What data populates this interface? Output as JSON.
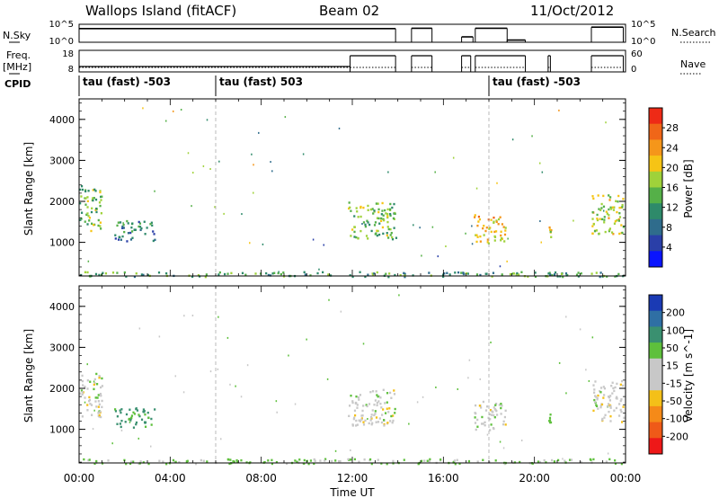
{
  "header": {
    "station": "Wallops Island (fitACF)",
    "beam": "Beam 02",
    "date": "11/Oct/2012"
  },
  "labels": {
    "nsky": "N.Sky",
    "freq_line1": "Freq.",
    "freq_line2": "[MHz]",
    "cpid": "CPID",
    "nsearch": "N.Search",
    "nave": "Nave",
    "nsky_top": "10^5",
    "nsky_bottom": "10^0",
    "nsearch_top": "10^5",
    "nsearch_bottom": "10^0",
    "freq_top": "18",
    "freq_bottom": "8",
    "nave_top": "60",
    "nave_bottom": "0"
  },
  "cpid_segments": [
    {
      "start_hour": 0,
      "label": "tau (fast) -503"
    },
    {
      "start_hour": 6,
      "label": "tau (fast) 503"
    },
    {
      "start_hour": 18,
      "label": "tau (fast) -503"
    }
  ],
  "colors": {
    "power_scale": [
      "#0a14ff",
      "#2a3fa8",
      "#2f6c8c",
      "#2e8a6a",
      "#55b048",
      "#9fd23a",
      "#f6c415",
      "#f5961a",
      "#f06618",
      "#ee2a16"
    ],
    "velocity_scale": [
      "#1a3ab4",
      "#2f6fa4",
      "#3a9070",
      "#5ec03c",
      "#c8c8c8",
      "#c8c8c8",
      "#f4c018",
      "#f58a18",
      "#ef5a18",
      "#ee1818"
    ],
    "data_line": "#000000"
  },
  "chart_data": [
    {
      "type": "heatmap",
      "name": "power-panel",
      "ylabel": "Slant Range [km]",
      "y_ticks": [
        1000,
        2000,
        3000,
        4000
      ],
      "ylim": [
        180,
        4500
      ],
      "xlim": [
        0,
        24
      ],
      "colorbar_label": "Power [dB]",
      "colorbar_ticks": [
        4,
        8,
        12,
        16,
        20,
        24,
        28
      ],
      "colorbar_range": [
        0,
        30
      ],
      "echo_regions": [
        {
          "t0": 0.0,
          "t1": 1.0,
          "r0": 1300,
          "r1": 2400,
          "value": 14
        },
        {
          "t0": 1.5,
          "t1": 3.3,
          "r0": 1050,
          "r1": 1550,
          "value": 9
        },
        {
          "t0": 11.8,
          "t1": 13.9,
          "r0": 1100,
          "r1": 2000,
          "value": 15
        },
        {
          "t0": 17.3,
          "t1": 18.7,
          "r0": 1000,
          "r1": 1700,
          "value": 20
        },
        {
          "t0": 20.6,
          "t1": 20.7,
          "r0": 1100,
          "r1": 1400,
          "value": 18
        },
        {
          "t0": 22.5,
          "t1": 23.9,
          "r0": 1200,
          "r1": 2200,
          "value": 17
        },
        {
          "t0": 0.0,
          "t1": 24.0,
          "r0": 180,
          "r1": 300,
          "value": 12
        }
      ]
    },
    {
      "type": "heatmap",
      "name": "velocity-panel",
      "ylabel": "Slant Range [km]",
      "xlabel": "Time UT",
      "x_ticks": [
        "00:00",
        "04:00",
        "08:00",
        "12:00",
        "16:00",
        "20:00",
        "00:00"
      ],
      "y_ticks": [
        1000,
        2000,
        3000,
        4000
      ],
      "ylim": [
        180,
        4500
      ],
      "xlim": [
        0,
        24
      ],
      "colorbar_label": "Velocity [m s^-1]",
      "colorbar_ticks": [
        "200",
        "100",
        "50",
        "15",
        "-15",
        "-50",
        "-100",
        "-200"
      ],
      "echo_regions": [
        {
          "t0": 0.0,
          "t1": 1.0,
          "r0": 1300,
          "r1": 2400,
          "value": 0
        },
        {
          "t0": 1.5,
          "t1": 3.3,
          "r0": 1050,
          "r1": 1550,
          "value": 60
        },
        {
          "t0": 11.8,
          "t1": 13.9,
          "r0": 1100,
          "r1": 2000,
          "value": 0
        },
        {
          "t0": 17.3,
          "t1": 18.7,
          "r0": 1000,
          "r1": 1700,
          "value": 0
        },
        {
          "t0": 20.6,
          "t1": 20.7,
          "r0": 1100,
          "r1": 1400,
          "value": 30
        },
        {
          "t0": 22.5,
          "t1": 23.9,
          "r0": 1200,
          "r1": 2200,
          "value": 0
        },
        {
          "t0": 0.0,
          "t1": 24.0,
          "r0": 180,
          "r1": 300,
          "value": 20
        }
      ]
    },
    {
      "type": "line",
      "name": "nsky-nsearch",
      "xlim": [
        0,
        24
      ],
      "ylim": [
        0,
        5
      ],
      "segments": [
        {
          "t0": 0.0,
          "t1": 13.9,
          "y": 3.8
        },
        {
          "t0": 14.6,
          "t1": 15.5,
          "y": 3.9
        },
        {
          "t0": 16.8,
          "t1": 17.3,
          "y": 1.5
        },
        {
          "t0": 17.4,
          "t1": 18.8,
          "y": 3.9
        },
        {
          "t0": 18.8,
          "t1": 19.6,
          "y": 0.6
        },
        {
          "t0": 22.5,
          "t1": 23.9,
          "y": 4.2
        }
      ]
    },
    {
      "type": "line",
      "name": "freq-nave",
      "xlim": [
        0,
        24
      ],
      "ylim": [
        8,
        18
      ],
      "segments": [
        {
          "t0": 0.0,
          "t1": 11.9,
          "y": 10.5
        },
        {
          "t0": 11.9,
          "t1": 13.9,
          "y": 15.5
        },
        {
          "t0": 14.6,
          "t1": 15.5,
          "y": 15.5
        },
        {
          "t0": 16.8,
          "t1": 17.2,
          "y": 15.5
        },
        {
          "t0": 17.4,
          "t1": 19.6,
          "y": 15.5
        },
        {
          "t0": 20.6,
          "t1": 20.7,
          "y": 15.5
        },
        {
          "t0": 22.5,
          "t1": 23.9,
          "y": 15.5
        }
      ]
    }
  ]
}
